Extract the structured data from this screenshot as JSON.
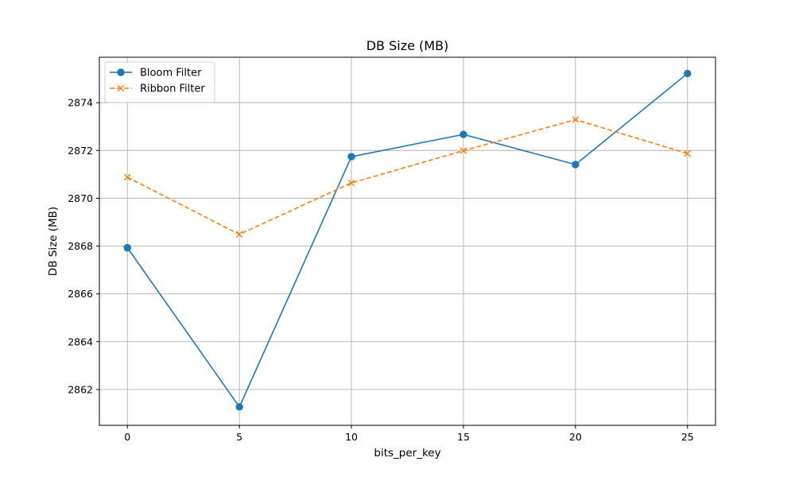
{
  "chart_data": {
    "type": "line",
    "title": "DB Size (MB)",
    "xlabel": "bits_per_key",
    "ylabel": "DB Size (MB)",
    "x": [
      0,
      5,
      10,
      15,
      20,
      25
    ],
    "xlim": [
      -1.25,
      26.25
    ],
    "ylim": [
      2860.5,
      2875.9
    ],
    "xticks": [
      0,
      5,
      10,
      15,
      20,
      25
    ],
    "yticks": [
      2862,
      2864,
      2866,
      2868,
      2870,
      2872,
      2874
    ],
    "grid": true,
    "legend_position": "top-left",
    "series": [
      {
        "name": "Bloom Filter",
        "values": [
          2867.93,
          2861.27,
          2871.74,
          2872.67,
          2871.41,
          2875.22
        ],
        "color": "#1f77b4",
        "marker": "circle",
        "linestyle": "solid"
      },
      {
        "name": "Ribbon Filter",
        "values": [
          2870.88,
          2868.49,
          2870.64,
          2871.99,
          2873.29,
          2871.87
        ],
        "color": "#ff7f0e",
        "marker": "x",
        "linestyle": "dashed"
      }
    ]
  }
}
